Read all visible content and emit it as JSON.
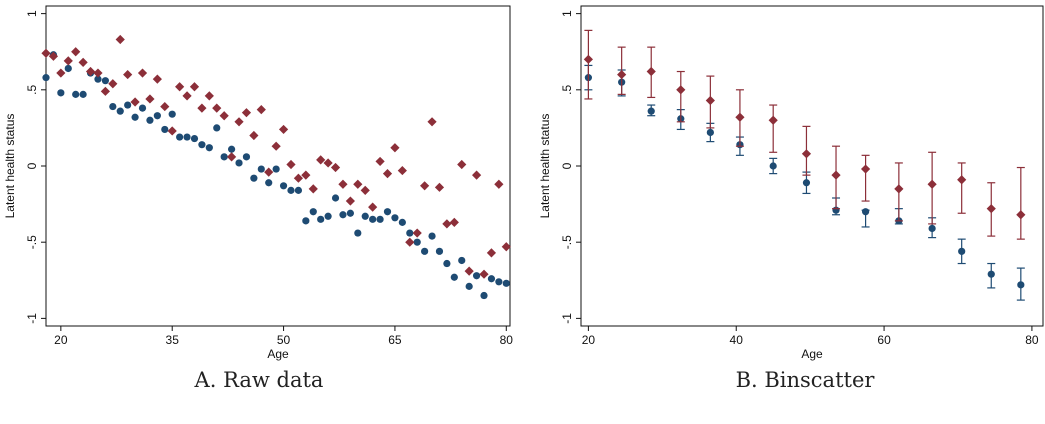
{
  "colors": {
    "series_1": "#1e4b73",
    "series_2": "#8c2f39",
    "axis": "#111111",
    "background": "#ffffff"
  },
  "panels": [
    {
      "caption": "A. Raw data"
    },
    {
      "caption": "B. Binscatter"
    }
  ],
  "chart_data": [
    {
      "type": "scatter",
      "xlabel": "Age",
      "ylabel": "Latent health status",
      "xlim": [
        18,
        80.5
      ],
      "ylim": [
        -1.05,
        1.05
      ],
      "xticks": [
        20,
        35,
        50,
        65,
        80
      ],
      "yticks": [
        -1,
        -0.5,
        0,
        0.5,
        1
      ],
      "ytick_labels": [
        "-1",
        "-.5",
        "0",
        ".5",
        "1"
      ],
      "grid": false,
      "legend": "none",
      "series": [
        {
          "marker": "circle",
          "x": [
            18,
            19,
            20,
            21,
            22,
            23,
            24,
            25,
            26,
            27,
            28,
            29,
            30,
            31,
            32,
            33,
            34,
            35,
            36,
            37,
            38,
            39,
            40,
            41,
            42,
            43,
            44,
            45,
            46,
            47,
            48,
            49,
            50,
            51,
            52,
            53,
            54,
            55,
            56,
            57,
            58,
            59,
            60,
            61,
            62,
            63,
            64,
            65,
            66,
            67,
            68,
            69,
            70,
            71,
            72,
            73,
            74,
            75,
            76,
            77,
            78,
            79,
            80
          ],
          "y": [
            0.58,
            0.73,
            0.48,
            0.64,
            0.47,
            0.47,
            0.61,
            0.57,
            0.56,
            0.39,
            0.36,
            0.4,
            0.32,
            0.38,
            0.3,
            0.33,
            0.24,
            0.34,
            0.19,
            0.19,
            0.18,
            0.14,
            0.12,
            0.25,
            0.06,
            0.11,
            0.02,
            0.06,
            -0.08,
            -0.02,
            -0.11,
            -0.02,
            -0.13,
            -0.16,
            -0.16,
            -0.36,
            -0.3,
            -0.35,
            -0.33,
            -0.21,
            -0.32,
            -0.31,
            -0.44,
            -0.33,
            -0.35,
            -0.35,
            -0.3,
            -0.34,
            -0.37,
            -0.44,
            -0.5,
            -0.56,
            -0.46,
            -0.56,
            -0.64,
            -0.73,
            -0.62,
            -0.79,
            -0.72,
            -0.85,
            -0.74,
            -0.76,
            -0.77
          ]
        },
        {
          "marker": "diamond",
          "x": [
            18,
            19,
            20,
            21,
            22,
            23,
            24,
            25,
            26,
            27,
            28,
            29,
            30,
            31,
            32,
            33,
            34,
            35,
            36,
            37,
            38,
            39,
            40,
            41,
            42,
            43,
            44,
            45,
            46,
            47,
            48,
            49,
            50,
            51,
            52,
            53,
            54,
            55,
            56,
            57,
            58,
            59,
            60,
            61,
            62,
            63,
            64,
            65,
            66,
            67,
            68,
            69,
            70,
            71,
            72,
            73,
            74,
            75,
            76,
            77,
            78,
            79,
            80
          ],
          "y": [
            0.74,
            0.72,
            0.61,
            0.69,
            0.75,
            0.68,
            0.62,
            0.61,
            0.49,
            0.54,
            0.83,
            0.6,
            0.42,
            0.61,
            0.44,
            0.57,
            0.39,
            0.23,
            0.52,
            0.46,
            0.52,
            0.38,
            0.46,
            0.38,
            0.33,
            0.06,
            0.29,
            0.35,
            0.2,
            0.37,
            -0.04,
            0.13,
            0.24,
            0.01,
            -0.08,
            -0.06,
            -0.15,
            0.04,
            0.02,
            -0.01,
            -0.12,
            -0.23,
            -0.12,
            -0.16,
            -0.27,
            0.03,
            -0.05,
            0.12,
            -0.03,
            -0.5,
            -0.44,
            -0.13,
            0.29,
            -0.14,
            -0.38,
            -0.37,
            0.01,
            -0.69,
            -0.06,
            -0.71,
            -0.57,
            -0.12,
            -0.53
          ]
        }
      ]
    },
    {
      "type": "scatter",
      "xlabel": "Age",
      "ylabel": "Latent health status",
      "xlim": [
        19,
        81.5
      ],
      "ylim": [
        -1.05,
        1.05
      ],
      "xticks": [
        20,
        40,
        60,
        80
      ],
      "yticks": [
        -1,
        -0.5,
        0,
        0.5,
        1
      ],
      "ytick_labels": [
        "-1",
        "-.5",
        "0",
        ".5",
        "1"
      ],
      "grid": false,
      "legend": "none",
      "series": [
        {
          "marker": "circle",
          "x": [
            20,
            24.5,
            28.5,
            32.5,
            36.5,
            40.5,
            45,
            49.5,
            53.5,
            57.5,
            62,
            66.5,
            70.5,
            74.5,
            78.5
          ],
          "y": [
            0.58,
            0.55,
            0.36,
            0.31,
            0.22,
            0.14,
            0.0,
            -0.11,
            -0.29,
            -0.3,
            -0.36,
            -0.41,
            -0.56,
            -0.71,
            -0.78
          ],
          "lo": [
            0.5,
            0.46,
            0.33,
            0.24,
            0.16,
            0.07,
            -0.05,
            -0.18,
            -0.32,
            -0.4,
            -0.38,
            -0.47,
            -0.64,
            -0.8,
            -0.88
          ],
          "hi": [
            0.66,
            0.63,
            0.4,
            0.37,
            0.28,
            0.19,
            0.05,
            -0.04,
            -0.21,
            -0.29,
            -0.28,
            -0.34,
            -0.48,
            -0.64,
            -0.67
          ]
        },
        {
          "marker": "diamond",
          "x": [
            20,
            24.5,
            28.5,
            32.5,
            36.5,
            40.5,
            45,
            49.5,
            53.5,
            57.5,
            62,
            66.5,
            70.5,
            74.5,
            78.5
          ],
          "y": [
            0.7,
            0.6,
            0.62,
            0.5,
            0.43,
            0.32,
            0.3,
            0.08,
            -0.06,
            -0.02,
            -0.15,
            -0.12,
            -0.09,
            -0.28,
            -0.32
          ],
          "lo": [
            0.44,
            0.47,
            0.45,
            0.29,
            0.25,
            0.13,
            0.09,
            -0.06,
            -0.28,
            -0.23,
            -0.36,
            -0.38,
            -0.31,
            -0.46,
            -0.48
          ],
          "hi": [
            0.89,
            0.78,
            0.78,
            0.62,
            0.59,
            0.5,
            0.4,
            0.26,
            0.13,
            0.07,
            0.02,
            0.09,
            0.02,
            -0.11,
            -0.01
          ]
        }
      ]
    }
  ]
}
